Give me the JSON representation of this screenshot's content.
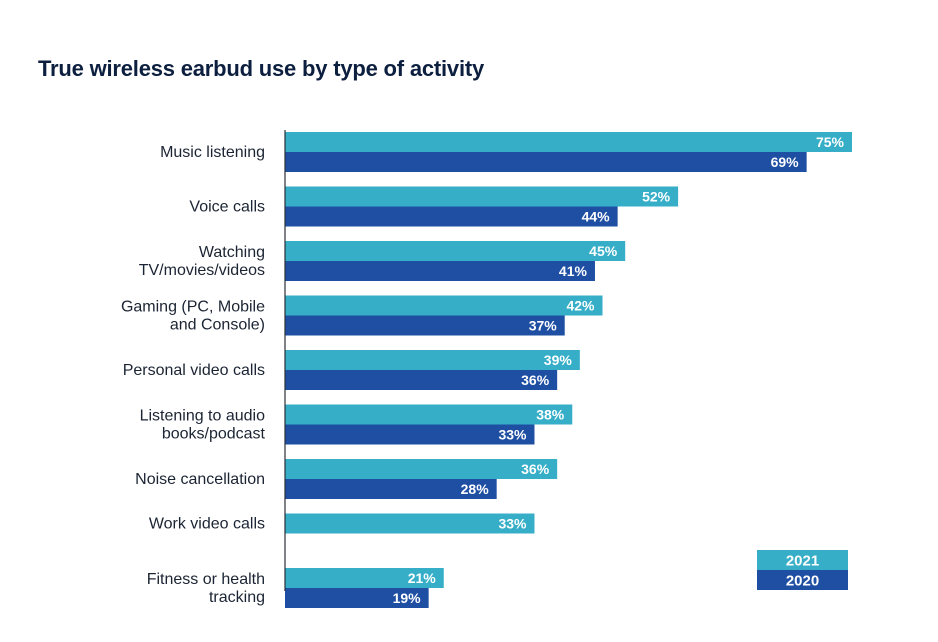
{
  "chart_data": {
    "type": "bar",
    "orientation": "horizontal",
    "title": "True wireless earbud use by type of activity",
    "categories": [
      [
        "Music listening"
      ],
      [
        "Voice calls"
      ],
      [
        "Watching",
        "TV/movies/videos"
      ],
      [
        "Gaming (PC, Mobile",
        "and Console)"
      ],
      [
        "Personal video calls"
      ],
      [
        "Listening to audio",
        "books/podcast"
      ],
      [
        "Noise cancellation"
      ],
      [
        "Work video calls"
      ],
      [
        "Fitness or health",
        "tracking"
      ]
    ],
    "series": [
      {
        "name": "2021",
        "color": "#36aec8",
        "values": [
          75,
          52,
          45,
          42,
          39,
          38,
          36,
          33,
          21
        ]
      },
      {
        "name": "2020",
        "color": "#1e4fa3",
        "values": [
          69,
          44,
          41,
          37,
          36,
          33,
          28,
          null,
          19
        ]
      }
    ],
    "value_suffix": "%",
    "xlim": [
      0,
      100
    ],
    "grid": false,
    "legend_position": "bottom-right"
  }
}
